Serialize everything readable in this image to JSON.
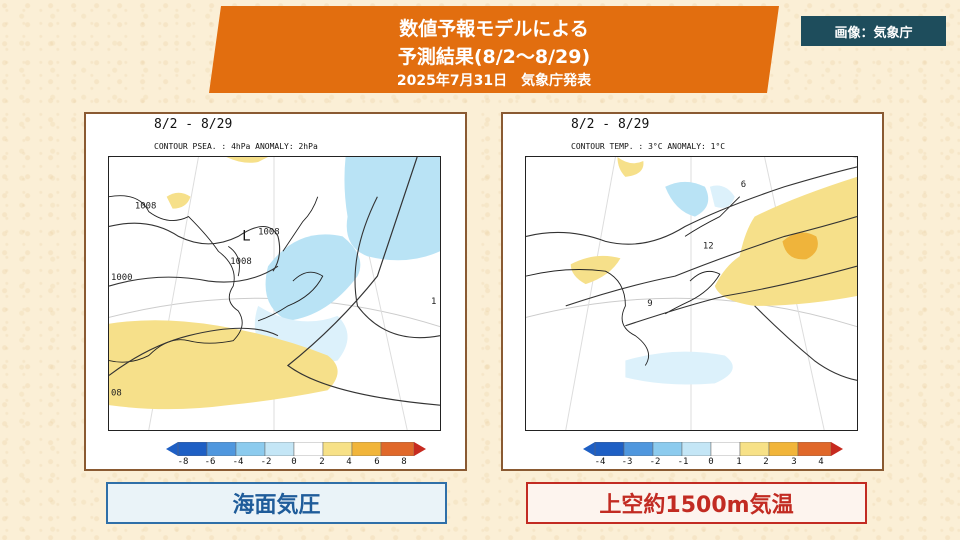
{
  "banner": {
    "line1": "数値予報モデルによる",
    "line2": "予測結果(8/2～8/29)",
    "line3": "2025年7月31日　気象庁発表"
  },
  "credit": "画像：気象庁",
  "panels": [
    {
      "period": "8/2 - 8/29",
      "contour_info": "CONTOUR PSEA. :  4hPa    ANOMALY:  2hPa",
      "labels": [
        "1008",
        "1008",
        "1008",
        "1000",
        "08",
        "1"
      ],
      "low_marker": "L",
      "colorbar_ticks": [
        "-8",
        "-6",
        "-4",
        "-2",
        "0",
        "2",
        "4",
        "6",
        "8"
      ],
      "caption": "海面気圧"
    },
    {
      "period": "8/2 - 8/29",
      "contour_info": "CONTOUR TEMP. :  3°C    ANOMALY:  1°C",
      "labels": [
        "12",
        "9",
        "6"
      ],
      "colorbar_ticks": [
        "-4",
        "-3",
        "-2",
        "-1",
        "0",
        "1",
        "2",
        "3",
        "4"
      ],
      "caption": "上空約1500m気温"
    }
  ],
  "colorbar_colors": [
    "#1e5fc4",
    "#4f97de",
    "#8ccbee",
    "#c4e6f6",
    "#ffffff",
    "#f7e187",
    "#f1b53a",
    "#e0682a",
    "#c62a1f"
  ],
  "anomaly_colors": {
    "negative_light": "#dcf1fb",
    "negative": "#b9e3f5",
    "positive": "#f6e08a",
    "positive_strong": "#efb43b"
  }
}
